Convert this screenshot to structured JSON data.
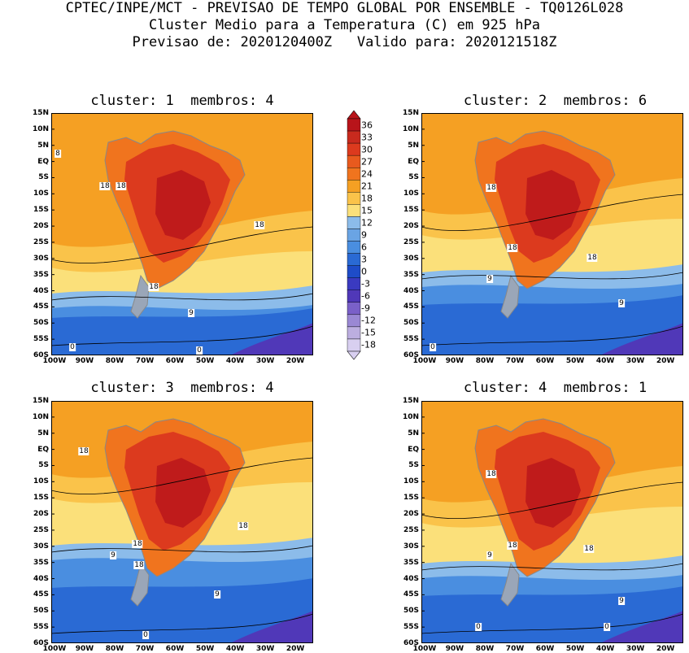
{
  "header": {
    "line1": "CPTEC/INPE/MCT - PREVISAO DE TEMPO GLOBAL POR ENSEMBLE - TQ0126L028",
    "line2": "Cluster Medio para a Temperatura (C) em 925 hPa",
    "line3": "Previsao de: 2020120400Z   Valido para: 2020121518Z"
  },
  "panels": [
    {
      "title": "cluster: 1  membros: 4"
    },
    {
      "title": "cluster: 2  membros: 6"
    },
    {
      "title": "cluster: 3  membros: 4"
    },
    {
      "title": "cluster: 4  membros: 1"
    }
  ],
  "axes": {
    "lat_ticks": [
      "15N",
      "10N",
      "5N",
      "EQ",
      "5S",
      "10S",
      "15S",
      "20S",
      "25S",
      "30S",
      "35S",
      "40S",
      "45S",
      "50S",
      "55S",
      "60S"
    ],
    "lon_ticks": [
      "100W",
      "90W",
      "80W",
      "70W",
      "60W",
      "50W",
      "40W",
      "30W",
      "20W"
    ]
  },
  "colorbar": {
    "labels": [
      "36",
      "33",
      "30",
      "27",
      "24",
      "21",
      "18",
      "15",
      "12",
      "9",
      "6",
      "3",
      "0",
      "-3",
      "-6",
      "-9",
      "-12",
      "-15",
      "-18"
    ],
    "colors": {
      "very_hot": "#b8141a",
      "hot": "#dc3a1e",
      "warm": "#f0741e",
      "orange": "#f5a023",
      "light_orange": "#fac34a",
      "yellow": "#fbe07a",
      "light_blue": "#8cbcea",
      "blue": "#4a8ee0",
      "mid_blue": "#2a6ad4",
      "deep_blue": "#1e4cc8",
      "purple": "#5038b8"
    }
  },
  "contour_labels": [
    [
      "8",
      "18",
      "18",
      "18",
      "18",
      "9",
      "0",
      "0"
    ],
    [
      "18",
      "18",
      "18",
      "9",
      "9",
      "0"
    ],
    [
      "18",
      "18",
      "18",
      "18",
      "9",
      "9",
      "0"
    ],
    [
      "18",
      "18",
      "18",
      "9",
      "9",
      "0",
      "0"
    ]
  ]
}
